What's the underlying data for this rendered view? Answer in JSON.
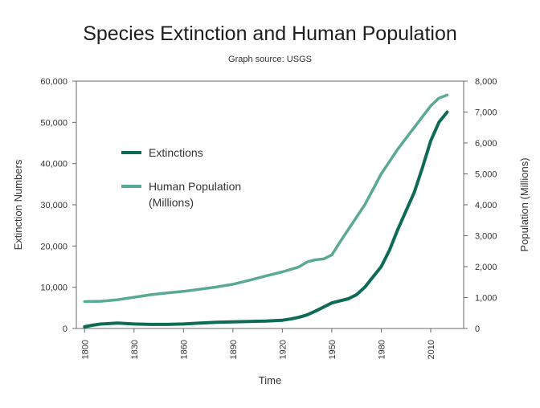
{
  "chart_data": {
    "type": "line",
    "title": "Species Extinction and Human Population",
    "subtitle": "Graph source: USGS",
    "xlabel": "Time",
    "ylabel_left": "Extinction Numbers",
    "ylabel_right": "Population (Millions)",
    "xlim": [
      1795,
      2030
    ],
    "ylim_left": [
      0,
      60000
    ],
    "ylim_right": [
      0,
      8000
    ],
    "x_ticks": [
      "1800",
      "1830",
      "1860",
      "1890",
      "1920",
      "1950",
      "1980",
      "2010"
    ],
    "y_left_ticks": [
      "0",
      "10,000",
      "20,000",
      "30,000",
      "40,000",
      "50,000",
      "60,000"
    ],
    "y_right_ticks": [
      "0",
      "1,000",
      "2,000",
      "3,000",
      "4,000",
      "5,000",
      "6,000",
      "7,000",
      "8,000"
    ],
    "legend_position": "upper-left inside plot",
    "grid": false,
    "series": [
      {
        "name": "Extinctions",
        "axis": "left",
        "color": "#0f6b55",
        "x": [
          1800,
          1805,
          1810,
          1820,
          1830,
          1840,
          1850,
          1860,
          1870,
          1880,
          1890,
          1900,
          1910,
          1920,
          1925,
          1930,
          1935,
          1940,
          1945,
          1950,
          1955,
          1960,
          1965,
          1970,
          1975,
          1980,
          1985,
          1990,
          1995,
          2000,
          2005,
          2010,
          2015,
          2020
        ],
        "values": [
          400,
          800,
          1100,
          1300,
          1100,
          1000,
          1000,
          1100,
          1300,
          1500,
          1600,
          1700,
          1800,
          2000,
          2300,
          2700,
          3300,
          4200,
          5200,
          6200,
          6700,
          7200,
          8200,
          10000,
          12500,
          15000,
          19000,
          24000,
          28500,
          33000,
          39000,
          45500,
          50000,
          52500
        ]
      },
      {
        "name": "Human Population (Millions)",
        "axis": "right",
        "color": "#5aa994",
        "x": [
          1800,
          1810,
          1820,
          1830,
          1840,
          1850,
          1860,
          1870,
          1880,
          1890,
          1900,
          1910,
          1920,
          1930,
          1935,
          1940,
          1945,
          1950,
          1955,
          1960,
          1965,
          1970,
          1975,
          1980,
          1985,
          1990,
          1995,
          2000,
          2005,
          2010,
          2015,
          2020
        ],
        "values": [
          870,
          880,
          930,
          1010,
          1090,
          1150,
          1200,
          1270,
          1340,
          1430,
          1560,
          1700,
          1830,
          1990,
          2150,
          2220,
          2250,
          2380,
          2800,
          3200,
          3600,
          4000,
          4500,
          5000,
          5400,
          5800,
          6150,
          6500,
          6850,
          7200,
          7450,
          7550
        ]
      }
    ]
  }
}
